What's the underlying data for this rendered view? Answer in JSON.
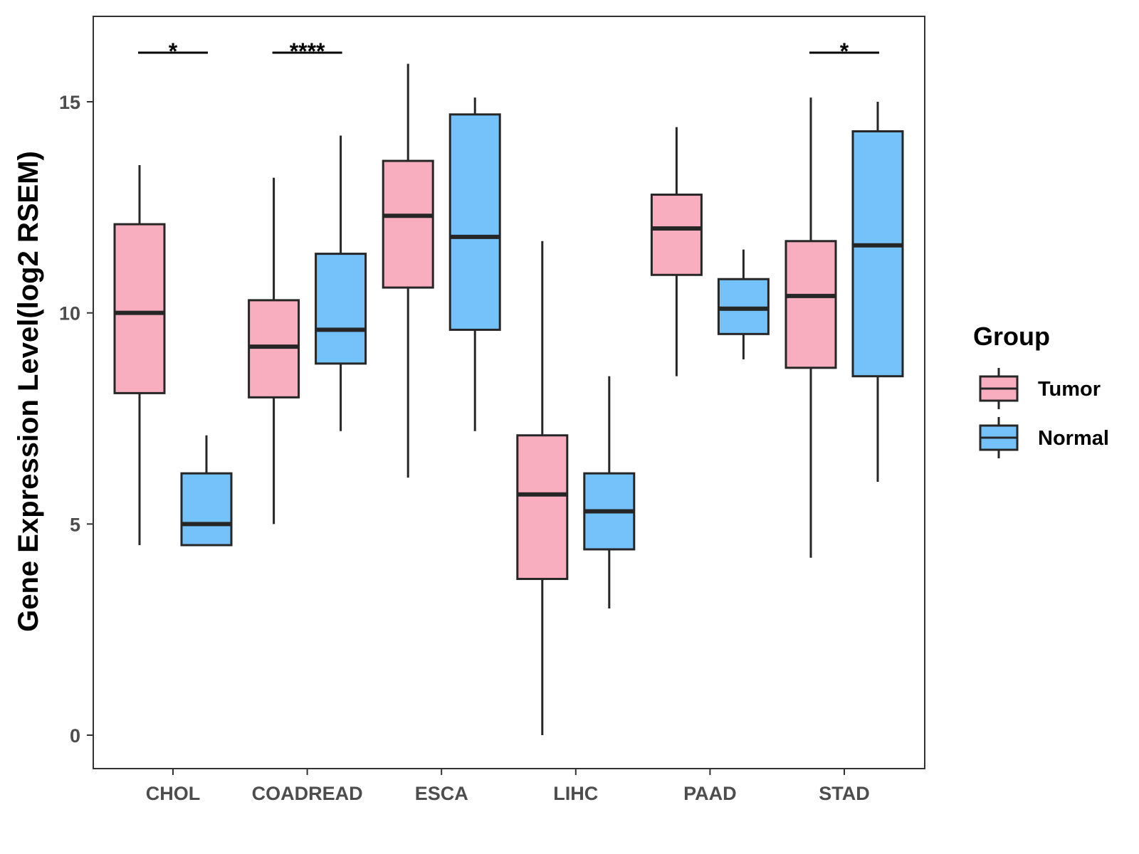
{
  "chart_data": {
    "type": "box",
    "title": "",
    "xlabel": "",
    "ylabel": "Gene Expression Level(log2 RSEM)",
    "ylim": [
      -0.8,
      17
    ],
    "yticks": [
      0,
      5,
      10,
      15
    ],
    "categories": [
      "CHOL",
      "COADREAD",
      "ESCA",
      "LIHC",
      "PAAD",
      "STAD"
    ],
    "legend": {
      "title": "Group",
      "position": "right"
    },
    "series": [
      {
        "name": "Tumor",
        "color": "#F9AEC0",
        "boxes": [
          {
            "category": "CHOL",
            "min": 4.5,
            "q1": 8.1,
            "median": 10.0,
            "q3": 12.1,
            "max": 13.5
          },
          {
            "category": "COADREAD",
            "min": 5.0,
            "q1": 8.0,
            "median": 9.2,
            "q3": 10.3,
            "max": 13.2
          },
          {
            "category": "ESCA",
            "min": 6.1,
            "q1": 10.6,
            "median": 12.3,
            "q3": 13.6,
            "max": 15.9
          },
          {
            "category": "LIHC",
            "min": 0.0,
            "q1": 3.7,
            "median": 5.7,
            "q3": 7.1,
            "max": 11.7
          },
          {
            "category": "PAAD",
            "min": 8.5,
            "q1": 10.9,
            "median": 12.0,
            "q3": 12.8,
            "max": 14.4
          },
          {
            "category": "STAD",
            "min": 4.2,
            "q1": 8.7,
            "median": 10.4,
            "q3": 11.7,
            "max": 15.1
          }
        ]
      },
      {
        "name": "Normal",
        "color": "#75C1F9",
        "boxes": [
          {
            "category": "CHOL",
            "min": 4.5,
            "q1": 4.5,
            "median": 5.0,
            "q3": 6.2,
            "max": 7.1
          },
          {
            "category": "COADREAD",
            "min": 7.2,
            "q1": 8.8,
            "median": 9.6,
            "q3": 11.4,
            "max": 14.2
          },
          {
            "category": "ESCA",
            "min": 7.2,
            "q1": 9.6,
            "median": 11.8,
            "q3": 14.7,
            "max": 15.1
          },
          {
            "category": "LIHC",
            "min": 3.0,
            "q1": 4.4,
            "median": 5.3,
            "q3": 6.2,
            "max": 8.5
          },
          {
            "category": "PAAD",
            "min": 8.9,
            "q1": 9.5,
            "median": 10.1,
            "q3": 10.8,
            "max": 11.5
          },
          {
            "category": "STAD",
            "min": 6.0,
            "q1": 8.5,
            "median": 11.6,
            "q3": 14.3,
            "max": 15.0
          }
        ]
      }
    ],
    "annotations": [
      {
        "category": "CHOL",
        "label": "*"
      },
      {
        "category": "COADREAD",
        "label": "****"
      },
      {
        "category": "STAD",
        "label": "*"
      }
    ]
  }
}
